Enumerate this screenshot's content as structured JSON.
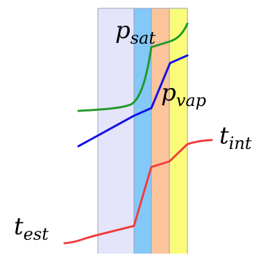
{
  "diagram": {
    "layers": [
      {
        "name": "layer-1",
        "color": "#e4e4fb"
      },
      {
        "name": "layer-2",
        "color": "#84c8f8"
      },
      {
        "name": "layer-3",
        "color": "#fbc49b"
      },
      {
        "name": "layer-4",
        "color": "#fbfb7a"
      }
    ],
    "border_color": "#9aa0b8",
    "curves": {
      "p_sat": {
        "color": "#1e9a28"
      },
      "p_vap": {
        "color": "#1010e8"
      },
      "t": {
        "color": "#f03c3c"
      }
    },
    "labels": {
      "p_sat": {
        "base": "p",
        "sub": "sat"
      },
      "p_vap": {
        "base": "p",
        "sub": "vap"
      },
      "t_int": {
        "base": "t",
        "sub": "int"
      },
      "t_est": {
        "base": "t",
        "sub": "est"
      }
    }
  }
}
